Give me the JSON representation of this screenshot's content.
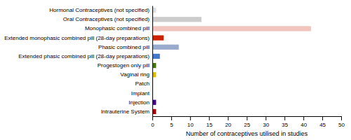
{
  "chart_data": {
    "type": "bar",
    "orientation": "horizontal",
    "categories": [
      "Intrauterine System",
      "Injection",
      "Implant",
      "Patch",
      "Vaginal ring",
      "Progestogen only pill",
      "Extended phasic combined pill (28-day preparations)",
      "Phasic combined pill",
      "Extended monophasic combined pill (28-day preparations)",
      "Monophasic combined pill",
      "Oral Contraceptives (not specified)",
      "Hormonal Contraceptives (not specified)"
    ],
    "values": [
      1,
      1,
      0,
      0,
      1,
      1,
      2,
      7,
      3,
      42,
      13,
      1
    ],
    "colors": [
      "#aa0000",
      "#440088",
      "#888888",
      "#888888",
      "#ddbb00",
      "#447700",
      "#4477cc",
      "#99aacc",
      "#cc2200",
      "#f2c4be",
      "#cccccc",
      "#dddddd"
    ],
    "xlabel": "Number of contraceptives utilised in studies",
    "xlim": [
      0,
      50
    ],
    "xticks": [
      0,
      5,
      10,
      15,
      20,
      25,
      30,
      35,
      40,
      45,
      50
    ],
    "grid": false
  }
}
